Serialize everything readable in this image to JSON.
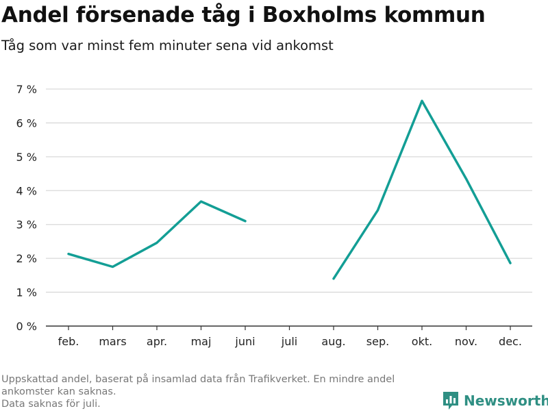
{
  "title": "Andel försenade tåg i Boxholms kommun",
  "subtitle": "Tåg som var minst fem minuter sena vid ankomst",
  "footer": {
    "note1": "Uppskattad andel, baserat på insamlad data från Trafikverket. En mindre andel",
    "note2": "ankomster kan saknas.",
    "note3": "Data saknas för juli."
  },
  "brand": {
    "name": "Newsworthy",
    "icon": "newsworthy-logo-icon",
    "color": "#2f8f83"
  },
  "colors": {
    "line": "#139e95",
    "grid": "#d9d9d9",
    "axis": "#333333",
    "tick_text": "#222222"
  },
  "chart_data": {
    "type": "line",
    "categories": [
      "feb.",
      "mars",
      "apr.",
      "maj",
      "juni",
      "juli",
      "aug.",
      "sep.",
      "okt.",
      "nov.",
      "dec."
    ],
    "series": [
      {
        "values": [
          2.13,
          1.75,
          2.46,
          3.68,
          3.1,
          null,
          1.4,
          3.42,
          6.65,
          4.35,
          1.86
        ]
      }
    ],
    "ylim": [
      0,
      7
    ],
    "yticks": [
      0,
      1,
      2,
      3,
      4,
      5,
      6,
      7
    ],
    "ytick_labels": [
      "0 %",
      "1 %",
      "2 %",
      "3 %",
      "4 %",
      "5 %",
      "6 %",
      "7 %"
    ],
    "grid": true,
    "xlabel": "",
    "ylabel": ""
  }
}
